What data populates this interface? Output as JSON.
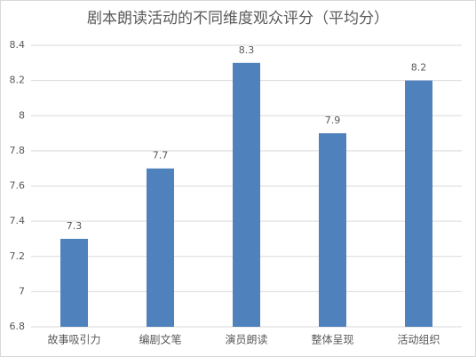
{
  "chart_data": {
    "type": "bar",
    "title": "剧本朗读活动的不同维度观众评分（平均分）",
    "categories": [
      "故事吸引力",
      "编剧文笔",
      "演员朗读",
      "整体呈现",
      "活动组织"
    ],
    "values": [
      7.3,
      7.7,
      8.3,
      7.9,
      8.2
    ],
    "color": "#4f81bd",
    "ylim": [
      6.8,
      8.4
    ],
    "yticks": [
      6.8,
      7,
      7.2,
      7.4,
      7.6,
      7.8,
      8,
      8.2,
      8.4
    ],
    "grid": true
  }
}
